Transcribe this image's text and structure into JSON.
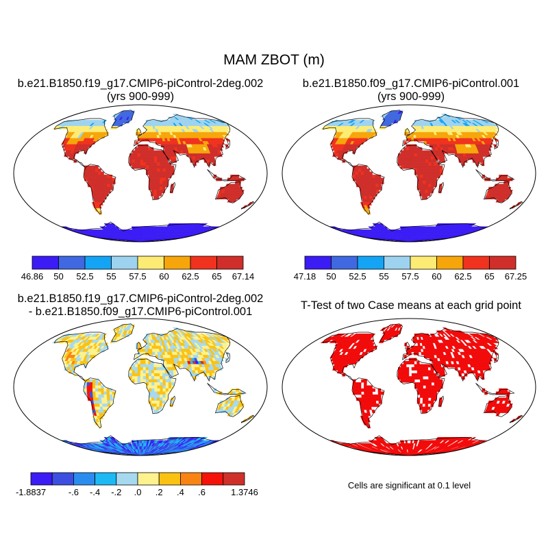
{
  "figure": {
    "title": "MAM ZBOT (m)"
  },
  "panels": [
    {
      "id": "case1",
      "title_lines": [
        "b.e21.B1850.f19_g17.CMIP6-piControl-2deg.002",
        "(yrs 900-999)"
      ],
      "colorbar": {
        "colors": [
          "#3b1cf5",
          "#4068e0",
          "#14a4f5",
          "#9ed3ef",
          "#fdec74",
          "#f6a60a",
          "#f0321e",
          "#cf2e2a"
        ],
        "labels": [
          "46.86",
          "50",
          "52.5",
          "55",
          "57.5",
          "60",
          "62.5",
          "65",
          "67.14"
        ]
      }
    },
    {
      "id": "case2",
      "title_lines": [
        "b.e21.B1850.f09_g17.CMIP6-piControl.001",
        "(yrs 900-999)"
      ],
      "colorbar": {
        "colors": [
          "#3b1cf5",
          "#4068e0",
          "#14a4f5",
          "#9ed3ef",
          "#fdec74",
          "#f6a60a",
          "#f0321e",
          "#cf2e2a"
        ],
        "labels": [
          "47.18",
          "50",
          "52.5",
          "55",
          "57.5",
          "60",
          "62.5",
          "65",
          "67.25"
        ]
      }
    },
    {
      "id": "difference",
      "title_lines": [
        "b.e21.B1850.f19_g17.CMIP6-piControl-2deg.002",
        "- b.e21.B1850.f09_g17.CMIP6-piControl.001"
      ],
      "colorbar": {
        "colors": [
          "#3b1cf5",
          "#3c4fe0",
          "#2b8cf0",
          "#1cb9f5",
          "#a6d9f0",
          "#fdf28e",
          "#fbc213",
          "#f98414",
          "#f51309",
          "#d0302a"
        ],
        "labels": [
          "-1.8837",
          "",
          "-.6",
          "-.4",
          "-.2",
          ".0",
          ".2",
          ".4",
          ".6",
          "",
          "1.3746"
        ]
      }
    },
    {
      "id": "ttest",
      "title_lines": [
        "T-Test of two Case means at each grid point"
      ],
      "note": "Cells are significant at 0.1 level",
      "significant_color": "#f20a0a"
    }
  ],
  "colors": {
    "ocean": "#ffffff",
    "coastline": "#000000",
    "map_border": "#000000"
  }
}
